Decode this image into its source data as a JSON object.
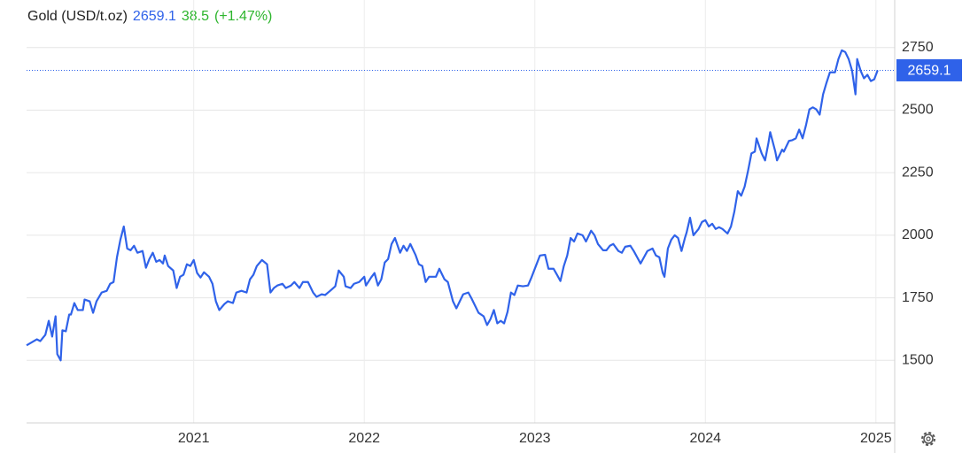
{
  "chart_data": {
    "type": "line",
    "title": "Gold (USD/t.oz)",
    "last_value": 2659.1,
    "change": 38.5,
    "change_pct": "(+1.47%)",
    "color": "#2f62e9",
    "grid": true,
    "xlim": [
      2020.02,
      2025.11
    ],
    "xticks": [
      2021,
      2022,
      2023,
      2024,
      2025
    ],
    "ylim": [
      1250,
      2940
    ],
    "yticks": [
      1500,
      1750,
      2000,
      2250,
      2500,
      2750
    ],
    "x": [
      2020.02,
      2020.08,
      2020.1,
      2020.13,
      2020.15,
      2020.17,
      2020.19,
      2020.2,
      2020.22,
      2020.23,
      2020.25,
      2020.27,
      2020.28,
      2020.3,
      2020.32,
      2020.35,
      2020.36,
      2020.39,
      2020.41,
      2020.43,
      2020.46,
      2020.49,
      2020.51,
      2020.53,
      2020.55,
      2020.57,
      2020.59,
      2020.61,
      2020.63,
      2020.65,
      2020.67,
      2020.7,
      2020.72,
      2020.74,
      2020.76,
      2020.78,
      2020.8,
      2020.82,
      2020.83,
      2020.85,
      2020.88,
      2020.9,
      2020.92,
      2020.94,
      2020.96,
      2020.98,
      2021.0,
      2021.02,
      2021.04,
      2021.06,
      2021.09,
      2021.11,
      2021.13,
      2021.15,
      2021.18,
      2021.2,
      2021.23,
      2021.25,
      2021.28,
      2021.31,
      2021.33,
      2021.35,
      2021.37,
      2021.4,
      2021.43,
      2021.45,
      2021.47,
      2021.49,
      2021.52,
      2021.54,
      2021.57,
      2021.59,
      2021.62,
      2021.64,
      2021.67,
      2021.7,
      2021.72,
      2021.75,
      2021.77,
      2021.8,
      2021.83,
      2021.85,
      2021.88,
      2021.89,
      2021.92,
      2021.94,
      2021.97,
      2022.0,
      2022.01,
      2022.04,
      2022.06,
      2022.08,
      2022.1,
      2022.12,
      2022.14,
      2022.16,
      2022.18,
      2022.21,
      2022.23,
      2022.25,
      2022.27,
      2022.3,
      2022.32,
      2022.34,
      2022.36,
      2022.38,
      2022.42,
      2022.44,
      2022.47,
      2022.49,
      2022.52,
      2022.54,
      2022.56,
      2022.58,
      2022.61,
      2022.63,
      2022.65,
      2022.67,
      2022.7,
      2022.72,
      2022.74,
      2022.76,
      2022.78,
      2022.8,
      2022.82,
      2022.84,
      2022.86,
      2022.88,
      2022.9,
      2022.93,
      2022.96,
      2022.98,
      2023.01,
      2023.03,
      2023.06,
      2023.08,
      2023.11,
      2023.13,
      2023.15,
      2023.17,
      2023.19,
      2023.21,
      2023.23,
      2023.25,
      2023.28,
      2023.3,
      2023.33,
      2023.35,
      2023.37,
      2023.4,
      2023.42,
      2023.44,
      2023.46,
      2023.49,
      2023.51,
      2023.53,
      2023.56,
      2023.58,
      2023.6,
      2023.62,
      2023.64,
      2023.66,
      2023.69,
      2023.71,
      2023.73,
      2023.75,
      2023.76,
      2023.78,
      2023.8,
      2023.82,
      2023.84,
      2023.86,
      2023.88,
      2023.89,
      2023.91,
      2023.93,
      2023.96,
      2023.98,
      2024.0,
      2024.02,
      2024.04,
      2024.06,
      2024.08,
      2024.1,
      2024.13,
      2024.15,
      2024.17,
      2024.19,
      2024.21,
      2024.23,
      2024.25,
      2024.27,
      2024.29,
      2024.3,
      2024.33,
      2024.35,
      2024.37,
      2024.38,
      2024.41,
      2024.42,
      2024.45,
      2024.46,
      2024.49,
      2024.51,
      2024.53,
      2024.55,
      2024.57,
      2024.59,
      2024.61,
      2024.63,
      2024.65,
      2024.67,
      2024.69,
      2024.71,
      2024.73,
      2024.76,
      2024.78,
      2024.8,
      2024.82,
      2024.84,
      2024.86,
      2024.88,
      2024.89,
      2024.91,
      2024.93,
      2024.95,
      2024.97,
      2024.99,
      2025.01
    ],
    "values": [
      1560,
      1584,
      1577,
      1602,
      1658,
      1595,
      1676,
      1525,
      1500,
      1620,
      1616,
      1683,
      1683,
      1729,
      1701,
      1701,
      1743,
      1736,
      1690,
      1736,
      1771,
      1778,
      1806,
      1813,
      1912,
      1982,
      2035,
      1947,
      1940,
      1958,
      1930,
      1937,
      1870,
      1905,
      1930,
      1894,
      1901,
      1887,
      1919,
      1877,
      1859,
      1789,
      1834,
      1842,
      1884,
      1877,
      1901,
      1849,
      1831,
      1852,
      1834,
      1806,
      1736,
      1701,
      1725,
      1736,
      1729,
      1771,
      1778,
      1771,
      1824,
      1842,
      1877,
      1901,
      1884,
      1771,
      1789,
      1799,
      1806,
      1789,
      1799,
      1813,
      1789,
      1813,
      1813,
      1771,
      1754,
      1764,
      1761,
      1778,
      1796,
      1859,
      1834,
      1796,
      1789,
      1806,
      1813,
      1834,
      1799,
      1831,
      1849,
      1799,
      1824,
      1891,
      1905,
      1965,
      1989,
      1930,
      1958,
      1937,
      1965,
      1922,
      1884,
      1877,
      1813,
      1834,
      1834,
      1866,
      1824,
      1813,
      1736,
      1708,
      1736,
      1764,
      1771,
      1746,
      1718,
      1690,
      1676,
      1641,
      1665,
      1701,
      1648,
      1658,
      1648,
      1694,
      1771,
      1761,
      1799,
      1796,
      1799,
      1831,
      1884,
      1919,
      1922,
      1866,
      1866,
      1842,
      1817,
      1877,
      1919,
      1989,
      1975,
      2007,
      2000,
      1975,
      2018,
      2000,
      1965,
      1940,
      1940,
      1958,
      1965,
      1937,
      1930,
      1954,
      1958,
      1937,
      1912,
      1887,
      1912,
      1937,
      1947,
      1919,
      1912,
      1849,
      1834,
      1947,
      1982,
      2000,
      1989,
      1937,
      1989,
      2011,
      2070,
      2000,
      2025,
      2053,
      2060,
      2035,
      2046,
      2025,
      2032,
      2025,
      2007,
      2035,
      2095,
      2176,
      2158,
      2194,
      2257,
      2327,
      2334,
      2387,
      2327,
      2299,
      2370,
      2412,
      2334,
      2299,
      2342,
      2334,
      2377,
      2380,
      2387,
      2422,
      2387,
      2440,
      2503,
      2511,
      2503,
      2482,
      2563,
      2609,
      2651,
      2651,
      2704,
      2739,
      2732,
      2704,
      2658,
      2563,
      2704,
      2658,
      2627,
      2641,
      2616,
      2623,
      2659.1
    ]
  }
}
